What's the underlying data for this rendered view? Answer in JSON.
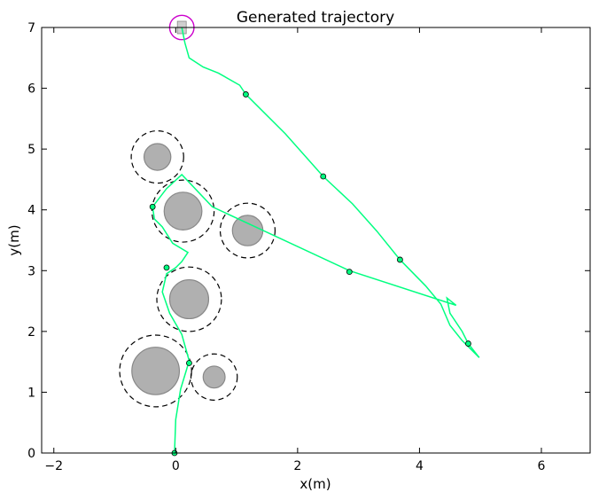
{
  "chart_data": {
    "type": "scatter",
    "title": "Generated trajectory",
    "xlabel": "x(m)",
    "ylabel": "y(m)",
    "xlim": [
      -2.2,
      6.8
    ],
    "ylim": [
      0,
      7
    ],
    "xticks": [
      -2,
      0,
      2,
      4,
      6
    ],
    "yticks": [
      0,
      1,
      2,
      3,
      4,
      5,
      6,
      7
    ],
    "grid": false,
    "colors": {
      "trajectory": "#00ff80",
      "obstacle_fill": "#b0b0b0",
      "obstacle_edge": "#888888",
      "safety_ring": "#000000",
      "goal": "#cc00cc"
    },
    "obstacles": [
      {
        "x": -0.3,
        "y": 4.87,
        "r": 0.22,
        "safety_r": 0.43
      },
      {
        "x": 0.12,
        "y": 3.98,
        "r": 0.31,
        "safety_r": 0.51
      },
      {
        "x": 1.18,
        "y": 3.66,
        "r": 0.25,
        "safety_r": 0.45
      },
      {
        "x": 0.22,
        "y": 2.53,
        "r": 0.32,
        "safety_r": 0.53
      },
      {
        "x": -0.33,
        "y": 1.35,
        "r": 0.39,
        "safety_r": 0.59
      },
      {
        "x": 0.63,
        "y": 1.25,
        "r": 0.18,
        "safety_r": 0.38
      }
    ],
    "goal": {
      "x": 0.1,
      "y": 7.0,
      "r": 0.2
    },
    "trajectory": {
      "x": [
        -0.02,
        0.0,
        0.08,
        0.18,
        0.22,
        0.1,
        -0.1,
        -0.22,
        -0.15,
        0.0,
        0.1,
        0.2,
        -0.05,
        -0.22,
        -0.35,
        -0.38,
        -0.15,
        0.1,
        0.6,
        2.85,
        4.6,
        4.45,
        4.5,
        4.7,
        4.8,
        4.98
      ],
      "y": [
        0.0,
        0.55,
        1.05,
        1.38,
        1.52,
        1.95,
        2.3,
        2.65,
        2.95,
        3.05,
        3.15,
        3.3,
        3.45,
        3.72,
        3.85,
        4.05,
        4.35,
        4.58,
        4.05,
        3.0,
        2.43,
        2.55,
        2.3,
        2.0,
        1.8,
        1.57
      ]
    },
    "trajectory2": {
      "x": [
        0.1,
        0.15,
        0.22,
        0.45,
        0.7,
        1.05,
        1.15,
        1.8,
        2.42,
        2.9,
        3.3,
        3.68,
        4.1,
        4.35,
        4.5,
        4.7,
        4.98
      ],
      "y": [
        7.0,
        6.75,
        6.5,
        6.35,
        6.25,
        6.05,
        5.9,
        5.25,
        4.55,
        4.1,
        3.65,
        3.18,
        2.75,
        2.45,
        2.1,
        1.85,
        1.57
      ]
    },
    "waypoints": {
      "x": [
        -0.02,
        0.22,
        -0.15,
        -0.38,
        2.85,
        1.15,
        2.42,
        3.68,
        4.8
      ],
      "y": [
        0.0,
        1.48,
        3.05,
        4.05,
        2.98,
        5.9,
        4.55,
        3.18,
        1.8
      ]
    }
  }
}
